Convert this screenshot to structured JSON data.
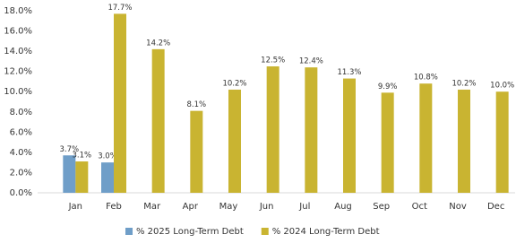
{
  "chart_data": {
    "type": "bar",
    "categories": [
      "Jan",
      "Feb",
      "Mar",
      "Apr",
      "May",
      "Jun",
      "Jul",
      "Aug",
      "Sep",
      "Oct",
      "Nov",
      "Dec"
    ],
    "series": [
      {
        "name": "% 2025 Long-Term Debt",
        "color": "#6f9ec8",
        "values": [
          3.7,
          3.0,
          null,
          null,
          null,
          null,
          null,
          null,
          null,
          null,
          null,
          null
        ],
        "value_labels": [
          "3.7%",
          "3.0%",
          null,
          null,
          null,
          null,
          null,
          null,
          null,
          null,
          null,
          null
        ]
      },
      {
        "name": "% 2024 Long-Term Debt",
        "color": "#c9b431",
        "values": [
          3.1,
          17.7,
          14.2,
          8.1,
          10.2,
          12.5,
          12.4,
          11.3,
          9.9,
          10.8,
          10.2,
          10.0
        ],
        "value_labels": [
          "3.1%",
          "17.7%",
          "14.2%",
          "8.1%",
          "10.2%",
          "12.5%",
          "12.4%",
          "11.3%",
          "9.9%",
          "10.8%",
          "10.2%",
          "10.0%"
        ]
      }
    ],
    "ylim": [
      0,
      18
    ],
    "yticks": [
      {
        "value": 0,
        "label": "0.0%"
      },
      {
        "value": 2,
        "label": "2.0%"
      },
      {
        "value": 4,
        "label": "4.0%"
      },
      {
        "value": 6,
        "label": "6.0%"
      },
      {
        "value": 8,
        "label": "8.0%"
      },
      {
        "value": 10,
        "label": "10.0%"
      },
      {
        "value": 12,
        "label": "12.0%"
      },
      {
        "value": 14,
        "label": "14.0%"
      },
      {
        "value": 16,
        "label": "16.0%"
      },
      {
        "value": 18,
        "label": "18.0%"
      }
    ],
    "grid": false
  }
}
